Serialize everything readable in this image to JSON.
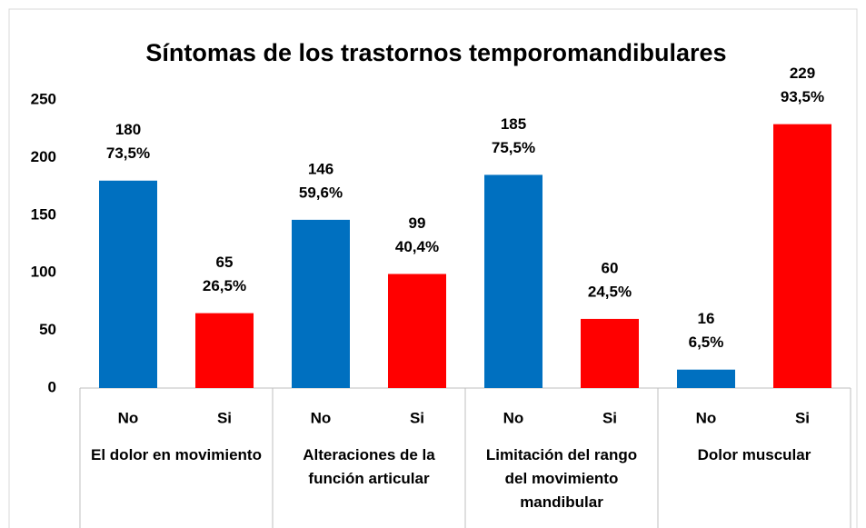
{
  "chart_data": {
    "type": "bar",
    "title": "Síntomas de los trastornos temporomandibulares",
    "categories": [
      "El dolor en movimiento",
      "Alteraciones de la función articular",
      "Limitación del rango del movimiento mandibular",
      "Dolor muscular"
    ],
    "series": [
      {
        "name": "No",
        "color": "#0070c0",
        "values": [
          180,
          146,
          185,
          16
        ],
        "percent_labels": [
          "73,5%",
          "59,6%",
          "75,5%",
          "6,5%"
        ]
      },
      {
        "name": "Si",
        "color": "#ff0000",
        "values": [
          65,
          99,
          60,
          229
        ],
        "percent_labels": [
          "26,5%",
          "40,4%",
          "24,5%",
          "93,5%"
        ]
      }
    ],
    "ylim": [
      0,
      250
    ],
    "yticks": [
      0,
      50,
      100,
      150,
      200,
      250
    ],
    "grid": false
  }
}
